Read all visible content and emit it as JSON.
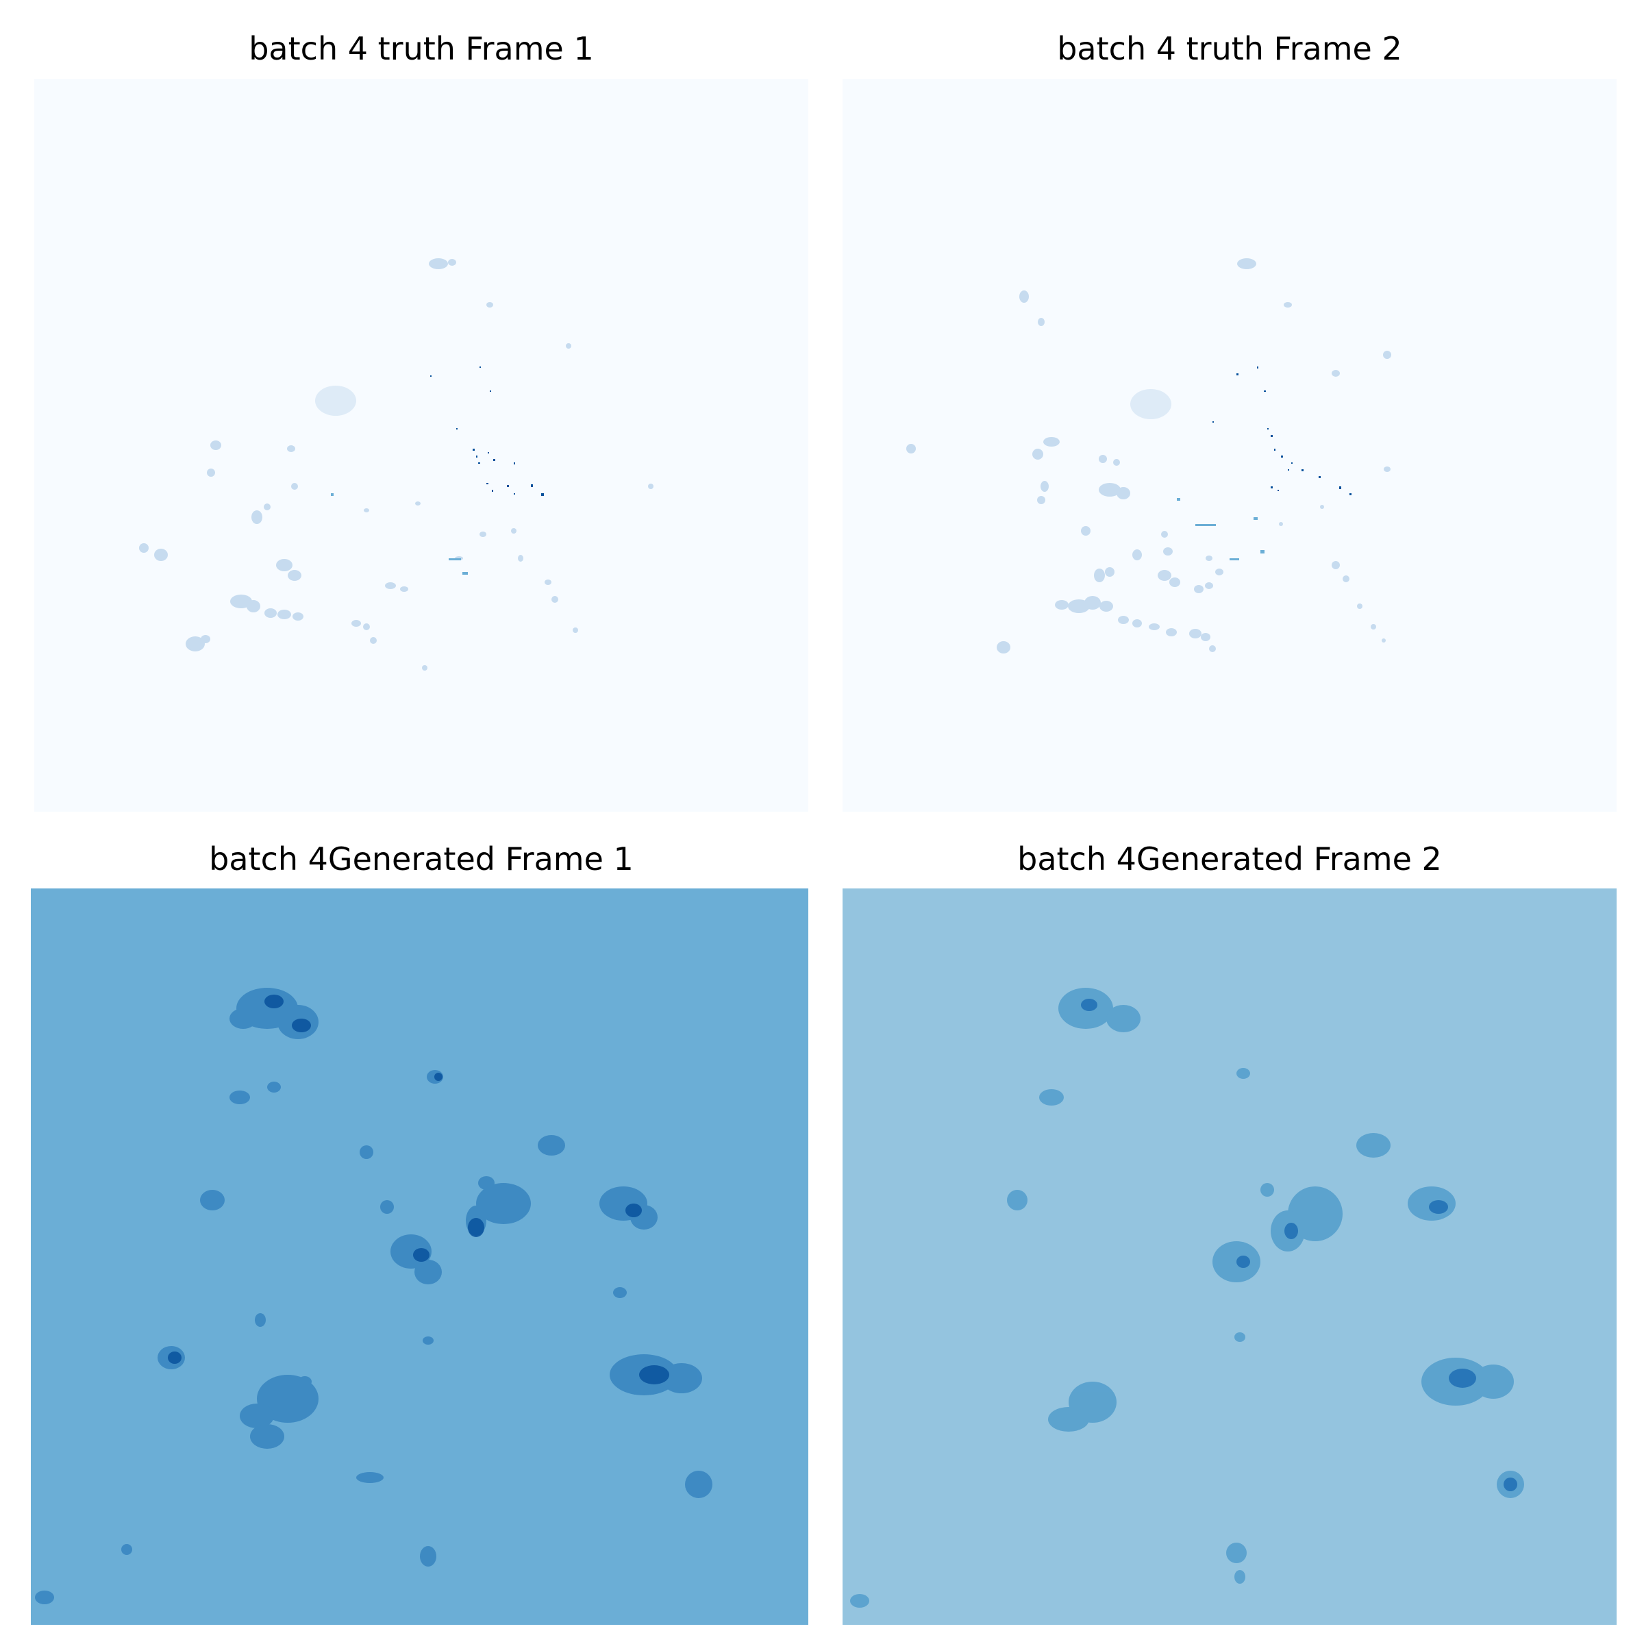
{
  "figure": {
    "panels": [
      {
        "title": "batch 4 truth Frame 1",
        "kind": "truth",
        "background": "#f7fbff"
      },
      {
        "title": "batch 4 truth Frame 2",
        "kind": "truth",
        "background": "#f7fbff"
      },
      {
        "title": "batch 4Generated Frame 1",
        "kind": "generated",
        "background": "#6baed6"
      },
      {
        "title": "batch 4Generated Frame 2",
        "kind": "generated",
        "background": "#94c4df"
      }
    ],
    "colormap": "Blues"
  }
}
